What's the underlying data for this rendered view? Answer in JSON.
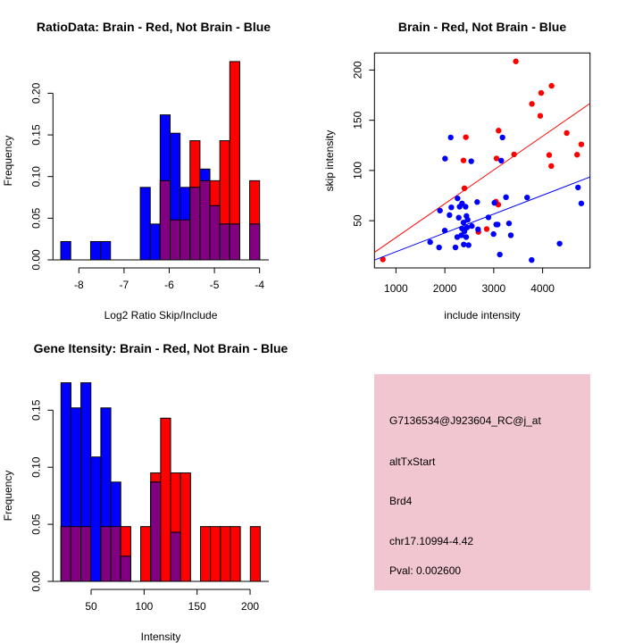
{
  "colors": {
    "red": "#ff0000",
    "blue": "#0000ff",
    "overlap": "#800080",
    "info_bg": "#f2c6d0",
    "pval": "#a00000"
  },
  "info_box": {
    "probe": "G7136534@J923604_RC@j_at",
    "event_type": "altTxStart",
    "gene": "Brd4",
    "location": "chr17.10994-4.42",
    "pval": "Pval: 0.002600"
  },
  "chart_data": [
    {
      "type": "bar",
      "title": "RatioData: Brain - Red, Not Brain - Blue",
      "xlabel": "Log2 Ratio Skip/Include",
      "ylabel": "Frequency",
      "bin_start": -8.4,
      "bin_width": 0.22,
      "xticks": [
        -8,
        -7,
        -6,
        -5,
        -4
      ],
      "yticks": [
        0.0,
        0.05,
        0.1,
        0.15,
        0.2
      ],
      "ytick_labels": [
        "0.00",
        "0.05",
        "0.10",
        "0.15",
        "0.20"
      ],
      "series": [
        {
          "name": "Brain",
          "color": "red",
          "values": [
            0,
            0,
            0,
            0,
            0,
            0,
            0,
            0,
            0,
            0,
            0.095,
            0.048,
            0.048,
            0.143,
            0.095,
            0.095,
            0.143,
            0.238,
            0,
            0.095
          ]
        },
        {
          "name": "Not Brain",
          "color": "blue",
          "values": [
            0.022,
            0,
            0,
            0.022,
            0.022,
            0,
            0,
            0,
            0.087,
            0.043,
            0.174,
            0.152,
            0.087,
            0.087,
            0.109,
            0.065,
            0.043,
            0.043,
            0,
            0.043
          ]
        }
      ]
    },
    {
      "type": "scatter",
      "title": "Brain - Red, Not Brain - Blue",
      "xlabel": "include intensity",
      "ylabel": "skip intensity",
      "xlim": [
        560,
        4970
      ],
      "ylim": [
        3,
        217
      ],
      "xticks": [
        1000,
        2000,
        3000,
        4000
      ],
      "yticks": [
        50,
        100,
        150,
        200
      ],
      "series": [
        {
          "name": "Brain",
          "color": "red",
          "points": [
            [
              732,
              11.5
            ],
            [
              3452,
              208.6
            ],
            [
              4183,
              184.3
            ],
            [
              3970,
              177.2
            ],
            [
              3781,
              166.3
            ],
            [
              3951,
              154.4
            ],
            [
              4493,
              137.3
            ],
            [
              4791,
              126
            ],
            [
              2430,
              133.1
            ],
            [
              3099,
              139.7
            ],
            [
              3416,
              116
            ],
            [
              4134,
              115.4
            ],
            [
              4705,
              115.7
            ],
            [
              2381,
              110
            ],
            [
              3057,
              112
            ],
            [
              4177,
              104.4
            ],
            [
              2400,
              82.3
            ],
            [
              3045,
              69
            ],
            [
              3093,
              66
            ],
            [
              2856,
              41.7
            ],
            [
              2686,
              38.8
            ]
          ],
          "fit": {
            "intercept": -0.3,
            "slope": 0.0336
          }
        },
        {
          "name": "Not Brain",
          "color": "blue",
          "points": [
            [
              2120,
              132.9
            ],
            [
              3179,
              132.9
            ],
            [
              2004,
              111.8
            ],
            [
              2540,
              109.2
            ],
            [
              3154,
              109.8
            ],
            [
              4724,
              83.1
            ],
            [
              4791,
              67.2
            ],
            [
              2260,
              72.2
            ],
            [
              2351,
              67.2
            ],
            [
              2302,
              63.9
            ],
            [
              2132,
              63.3
            ],
            [
              2424,
              63.9
            ],
            [
              2661,
              68.6
            ],
            [
              3014,
              67.8
            ],
            [
              3251,
              73.4
            ],
            [
              3683,
              73.1
            ],
            [
              1900,
              60.1
            ],
            [
              2095,
              55.6
            ],
            [
              2284,
              53
            ],
            [
              2442,
              54.7
            ],
            [
              2467,
              50.9
            ],
            [
              2381,
              48.2
            ],
            [
              2892,
              53.3
            ],
            [
              2552,
              44.7
            ],
            [
              2454,
              43.2
            ],
            [
              2351,
              42.3
            ],
            [
              2400,
              39.3
            ],
            [
              2679,
              41.4
            ],
            [
              3051,
              46.2
            ],
            [
              3081,
              46.2
            ],
            [
              3312,
              47.3
            ],
            [
              1998,
              40.2
            ],
            [
              2339,
              35.5
            ],
            [
              2436,
              33.7
            ],
            [
              2253,
              33.7
            ],
            [
              2996,
              36.7
            ],
            [
              3349,
              35.5
            ],
            [
              1700,
              28.7
            ],
            [
              1882,
              23.4
            ],
            [
              2217,
              23.4
            ],
            [
              2387,
              26.3
            ],
            [
              2485,
              25.7
            ],
            [
              4347,
              27.2
            ],
            [
              3124,
              16.3
            ],
            [
              3775,
              10.9
            ]
          ],
          "fit": {
            "intercept": 0.36,
            "slope": 0.01875
          }
        }
      ]
    },
    {
      "type": "bar",
      "title": "Gene Itensity: Brain - Red, Not Brain - Blue",
      "xlabel": "Intensity",
      "ylabel": "Frequency",
      "bin_start": 21.6,
      "bin_width": 9.4,
      "xticks": [
        50,
        100,
        150,
        200
      ],
      "yticks": [
        0.0,
        0.05,
        0.1,
        0.15
      ],
      "ytick_labels": [
        "0.00",
        "0.05",
        "0.10",
        "0.15"
      ],
      "series": [
        {
          "name": "Brain",
          "color": "red",
          "values": [
            0.048,
            0.048,
            0.048,
            0,
            0.048,
            0.048,
            0.048,
            0,
            0.048,
            0.095,
            0.143,
            0.095,
            0.095,
            0,
            0.048,
            0.048,
            0.048,
            0.048,
            0,
            0.048
          ]
        },
        {
          "name": "Not Brain",
          "color": "blue",
          "values": [
            0.174,
            0.152,
            0.174,
            0.109,
            0.152,
            0.087,
            0.022,
            0,
            0,
            0.087,
            0,
            0.043,
            0,
            0,
            0,
            0,
            0,
            0,
            0,
            0
          ]
        }
      ]
    }
  ]
}
